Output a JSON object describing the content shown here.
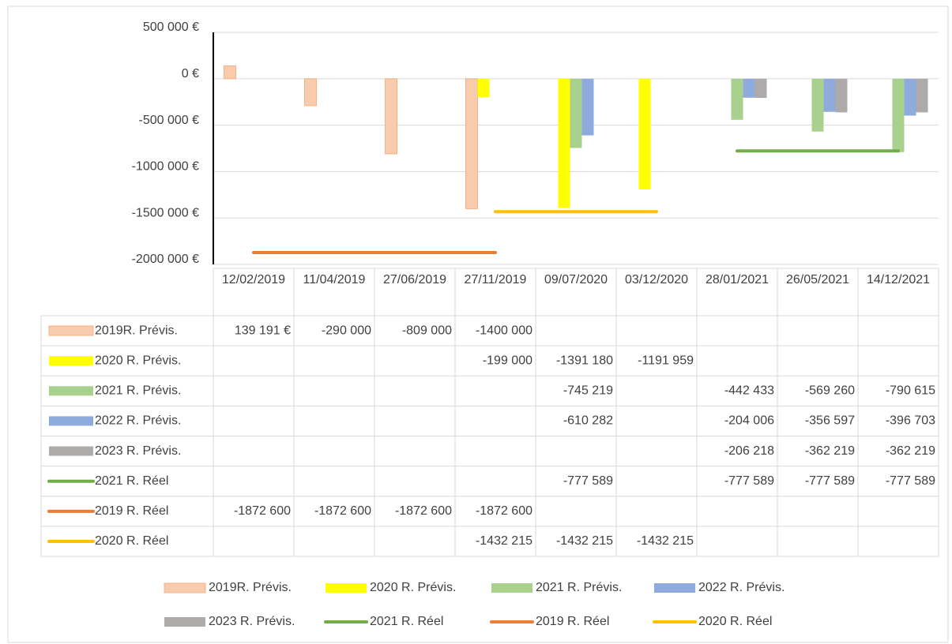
{
  "chart_data": {
    "type": "bar",
    "categories": [
      "12/02/2019",
      "11/04/2019",
      "27/06/2019",
      "27/11/2019",
      "09/07/2020",
      "03/12/2020",
      "28/01/2021",
      "26/05/2021",
      "14/12/2021"
    ],
    "ylim": [
      -2000000,
      500000
    ],
    "yticks": [
      {
        "value": 500000,
        "label": "500 000 €"
      },
      {
        "value": 0,
        "label": "0 €"
      },
      {
        "value": -500000,
        "label": "-500 000 €"
      },
      {
        "value": -1000000,
        "label": "-1000 000 €"
      },
      {
        "value": -1500000,
        "label": "-1500 000 €"
      },
      {
        "value": -2000000,
        "label": "-2000 000 €"
      }
    ],
    "grid": true,
    "series": [
      {
        "name": "2019R. Prévis.",
        "type": "bar",
        "color": "#f8cbad",
        "values": [
          139191,
          -290000,
          -809000,
          -1400000,
          null,
          null,
          null,
          null,
          null
        ],
        "value_labels": [
          "139 191 €",
          "-290 000",
          "-809 000",
          "-1400 000",
          null,
          null,
          null,
          null,
          null
        ]
      },
      {
        "name": "2020 R. Prévis.",
        "type": "bar",
        "color": "#ffff00",
        "values": [
          null,
          null,
          null,
          -199000,
          -1391180,
          -1191959,
          null,
          null,
          null
        ],
        "value_labels": [
          null,
          null,
          null,
          "-199 000",
          "-1391 180",
          "-1191 959",
          null,
          null,
          null
        ]
      },
      {
        "name": "2021 R. Prévis.",
        "type": "bar",
        "color": "#a9d18e",
        "values": [
          null,
          null,
          null,
          null,
          -745219,
          null,
          -442433,
          -569260,
          -790615
        ],
        "value_labels": [
          null,
          null,
          null,
          null,
          "-745 219",
          null,
          "-442 433",
          "-569 260",
          "-790 615"
        ]
      },
      {
        "name": "2022 R. Prévis.",
        "type": "bar",
        "color": "#8faadc",
        "values": [
          null,
          null,
          null,
          null,
          -610282,
          null,
          -204006,
          -356597,
          -396703
        ],
        "value_labels": [
          null,
          null,
          null,
          null,
          "-610 282",
          null,
          "-204 006",
          "-356 597",
          "-396 703"
        ]
      },
      {
        "name": "2023 R. Prévis.",
        "type": "bar",
        "color": "#aeaaaa",
        "values": [
          null,
          null,
          null,
          null,
          null,
          null,
          -206218,
          -362219,
          -362219
        ],
        "value_labels": [
          null,
          null,
          null,
          null,
          null,
          null,
          "-206 218",
          "-362 219",
          "-362 219"
        ]
      },
      {
        "name": "2021 R. Réel",
        "type": "line",
        "color": "#70ad47",
        "values": [
          null,
          null,
          null,
          null,
          -777589,
          null,
          -777589,
          -777589,
          -777589
        ],
        "value_labels": [
          null,
          null,
          null,
          null,
          "-777 589",
          null,
          "-777 589",
          "-777 589",
          "-777 589"
        ]
      },
      {
        "name": "2019 R. Réel",
        "type": "line",
        "color": "#ed7d31",
        "values": [
          -1872600,
          -1872600,
          -1872600,
          -1872600,
          null,
          null,
          null,
          null,
          null
        ],
        "value_labels": [
          "-1872 600",
          "-1872 600",
          "-1872 600",
          "-1872 600",
          null,
          null,
          null,
          null,
          null
        ]
      },
      {
        "name": "2020 R. Réel",
        "type": "line",
        "color": "#ffc000",
        "values": [
          null,
          null,
          null,
          -1432215,
          -1432215,
          -1432215,
          null,
          null,
          null
        ],
        "value_labels": [
          null,
          null,
          null,
          "-1432 215",
          "-1432 215",
          "-1432 215",
          null,
          null,
          null
        ]
      }
    ]
  }
}
